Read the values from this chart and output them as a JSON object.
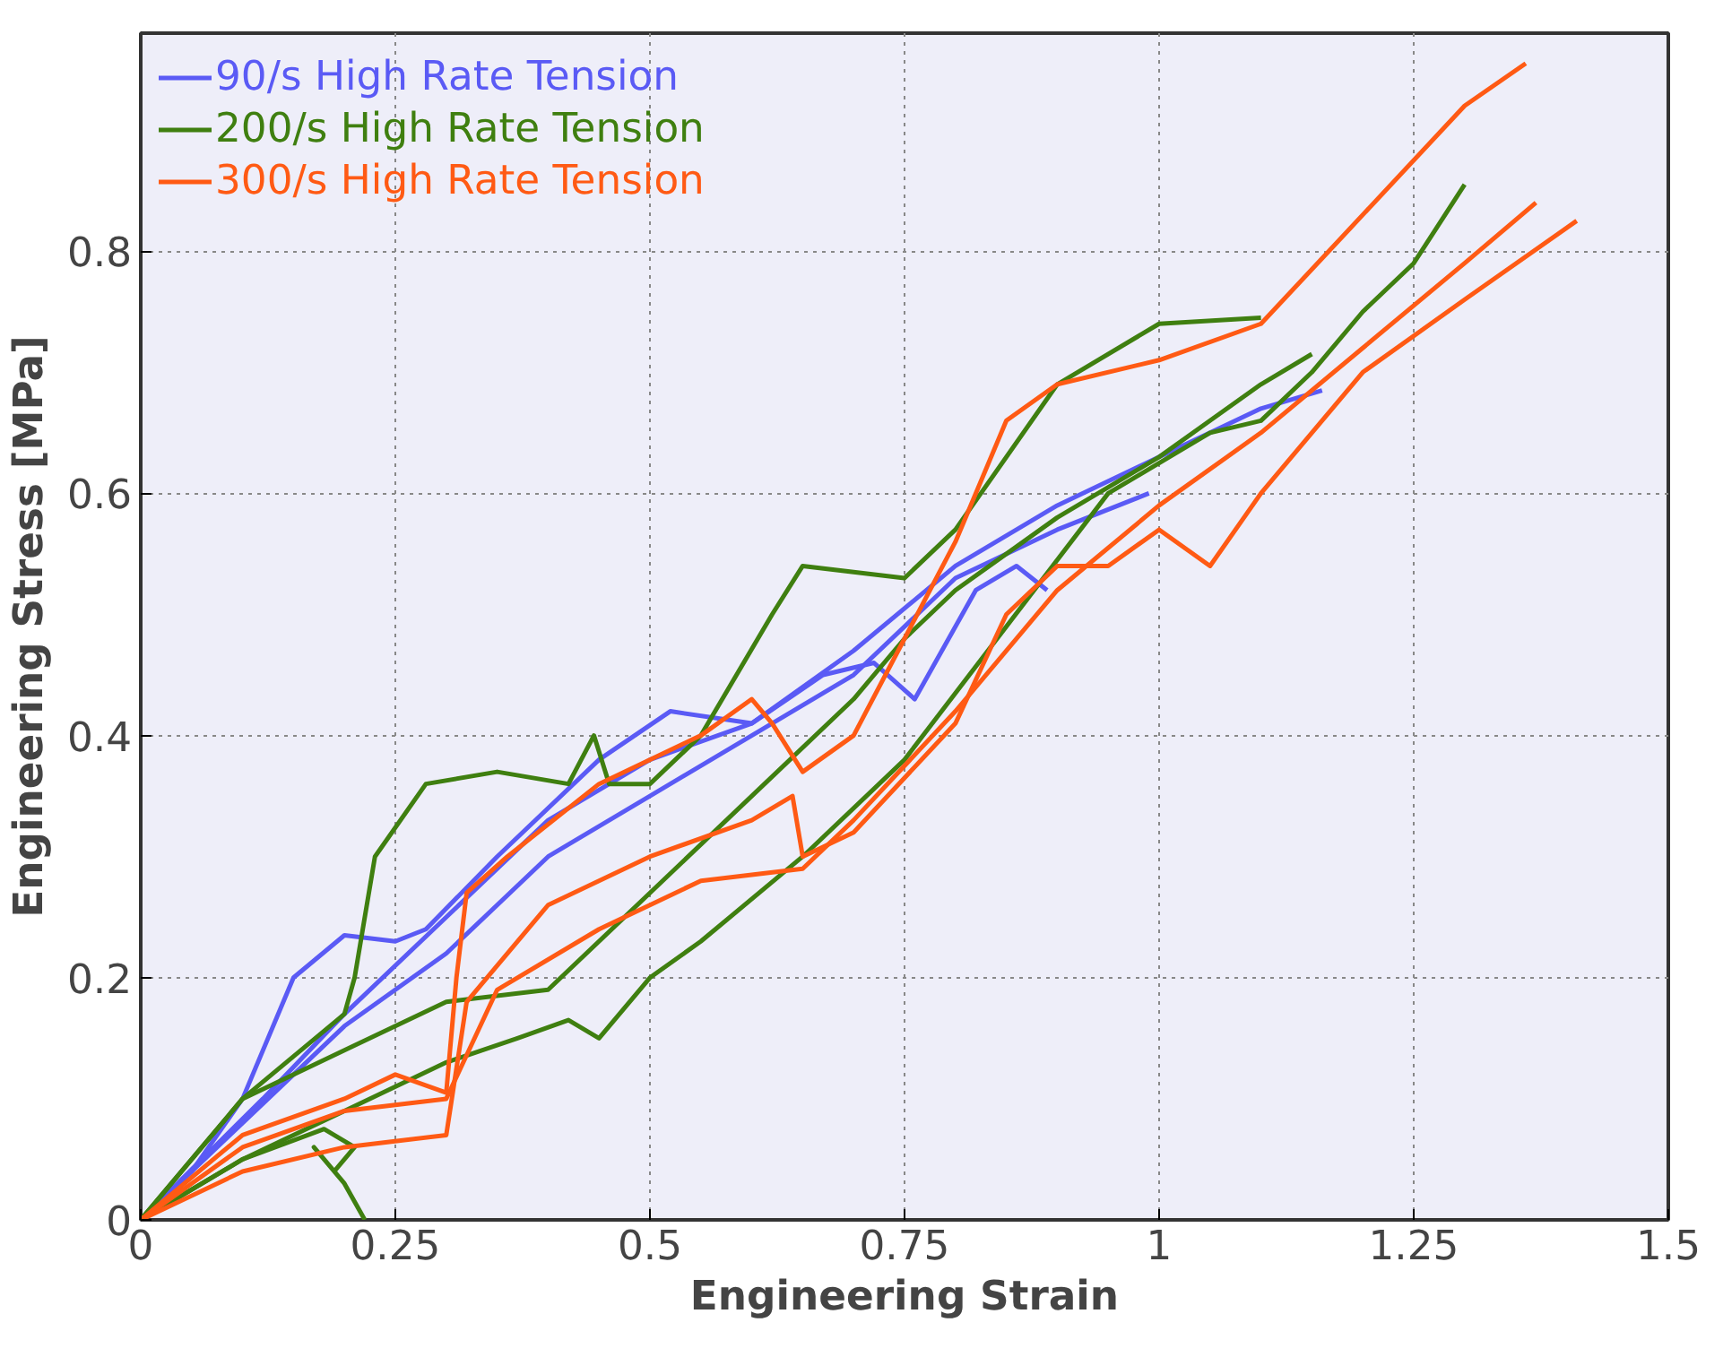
{
  "chart_data": {
    "type": "line",
    "xlabel": "Engineering Strain",
    "ylabel": "Engineering Stress [MPa]",
    "xlim": [
      0,
      1.5
    ],
    "ylim": [
      0,
      0.98
    ],
    "xticks": [
      0,
      0.25,
      0.5,
      0.75,
      1,
      1.25,
      1.5
    ],
    "yticks": [
      0,
      0.2,
      0.4,
      0.6,
      0.8
    ],
    "grid": true,
    "legend": "top left",
    "line_style": "solid",
    "marker": "none",
    "series": [
      {
        "name": "90/s High Rate Tension",
        "color": "#5a5af5",
        "x": [
          0,
          0.05,
          0.1,
          0.15,
          0.2,
          0.25,
          0.28,
          0.35,
          0.45,
          0.52,
          0.6,
          0.7,
          0.8,
          0.9,
          1.0,
          1.1,
          1.16
        ],
        "values": [
          0,
          0.04,
          0.1,
          0.2,
          0.235,
          0.23,
          0.24,
          0.3,
          0.38,
          0.42,
          0.41,
          0.47,
          0.54,
          0.59,
          0.63,
          0.67,
          0.685
        ]
      },
      {
        "color": "#5a5af5",
        "x": [
          0,
          0.1,
          0.2,
          0.3,
          0.4,
          0.5,
          0.6,
          0.7,
          0.8,
          0.9,
          0.99
        ],
        "values": [
          0,
          0.08,
          0.16,
          0.22,
          0.3,
          0.35,
          0.4,
          0.45,
          0.53,
          0.57,
          0.6
        ]
      },
      {
        "color": "#5a5af5",
        "x": [
          0,
          0.12,
          0.2,
          0.3,
          0.4,
          0.5,
          0.6,
          0.67,
          0.72,
          0.76,
          0.82,
          0.86,
          0.89
        ],
        "values": [
          0,
          0.1,
          0.17,
          0.25,
          0.33,
          0.38,
          0.41,
          0.45,
          0.46,
          0.43,
          0.52,
          0.54,
          0.52
        ]
      },
      {
        "name": "200/s High Rate Tension",
        "color": "#3f7f10",
        "x": [
          0,
          0.1,
          0.2,
          0.21,
          0.23,
          0.28,
          0.35,
          0.42,
          0.445,
          0.46,
          0.5,
          0.55,
          0.62,
          0.65,
          0.75,
          0.8,
          0.9,
          1.0,
          1.1
        ],
        "values": [
          0,
          0.1,
          0.17,
          0.2,
          0.3,
          0.36,
          0.37,
          0.36,
          0.4,
          0.36,
          0.36,
          0.4,
          0.5,
          0.54,
          0.53,
          0.57,
          0.69,
          0.74,
          0.745
        ]
      },
      {
        "color": "#3f7f10",
        "x": [
          0,
          0.1,
          0.18,
          0.21,
          0.19,
          0.17,
          0.2,
          0.22
        ],
        "values": [
          0,
          0.05,
          0.075,
          0.06,
          0.04,
          0.06,
          0.03,
          0.0
        ]
      },
      {
        "color": "#3f7f10",
        "x": [
          0,
          0.1,
          0.2,
          0.3,
          0.4,
          0.5,
          0.6,
          0.7,
          0.75,
          0.8,
          0.9,
          1.0,
          1.05,
          1.1,
          1.15
        ],
        "values": [
          0,
          0.1,
          0.14,
          0.18,
          0.19,
          0.27,
          0.35,
          0.43,
          0.48,
          0.52,
          0.58,
          0.63,
          0.66,
          0.69,
          0.715
        ]
      },
      {
        "color": "#3f7f10",
        "x": [
          0,
          0.1,
          0.2,
          0.3,
          0.37,
          0.42,
          0.45,
          0.5,
          0.55,
          0.65,
          0.75,
          0.85,
          0.95,
          1.05,
          1.1,
          1.15,
          1.2,
          1.25,
          1.3
        ],
        "values": [
          0,
          0.05,
          0.09,
          0.13,
          0.15,
          0.165,
          0.15,
          0.2,
          0.23,
          0.3,
          0.38,
          0.49,
          0.6,
          0.65,
          0.66,
          0.7,
          0.75,
          0.79,
          0.855
        ]
      },
      {
        "name": "300/s High Rate Tension",
        "color": "#ff5a14",
        "x": [
          0,
          0.1,
          0.2,
          0.25,
          0.3,
          0.31,
          0.32,
          0.36,
          0.45,
          0.55,
          0.6,
          0.62,
          0.65,
          0.7,
          0.75,
          0.8,
          0.85,
          0.9,
          1.0,
          1.1,
          1.2,
          1.3,
          1.36
        ],
        "values": [
          0,
          0.07,
          0.1,
          0.12,
          0.105,
          0.2,
          0.27,
          0.3,
          0.36,
          0.4,
          0.43,
          0.41,
          0.37,
          0.4,
          0.48,
          0.56,
          0.66,
          0.69,
          0.71,
          0.74,
          0.83,
          0.92,
          0.955
        ]
      },
      {
        "color": "#ff5a14",
        "x": [
          0,
          0.1,
          0.2,
          0.3,
          0.35,
          0.45,
          0.55,
          0.65,
          0.7,
          0.8,
          0.9,
          1.0,
          1.1,
          1.2,
          1.3,
          1.37
        ],
        "values": [
          0,
          0.06,
          0.09,
          0.1,
          0.19,
          0.24,
          0.28,
          0.29,
          0.33,
          0.42,
          0.52,
          0.59,
          0.65,
          0.72,
          0.79,
          0.84
        ]
      },
      {
        "color": "#ff5a14",
        "x": [
          0,
          0.1,
          0.2,
          0.3,
          0.32,
          0.4,
          0.5,
          0.6,
          0.64,
          0.65,
          0.7,
          0.8,
          0.85,
          0.9,
          0.95,
          1.0,
          1.05,
          1.1,
          1.2,
          1.3,
          1.41
        ],
        "values": [
          0,
          0.04,
          0.06,
          0.07,
          0.18,
          0.26,
          0.3,
          0.33,
          0.35,
          0.3,
          0.32,
          0.41,
          0.5,
          0.54,
          0.54,
          0.57,
          0.54,
          0.6,
          0.7,
          0.76,
          0.825
        ]
      }
    ]
  }
}
